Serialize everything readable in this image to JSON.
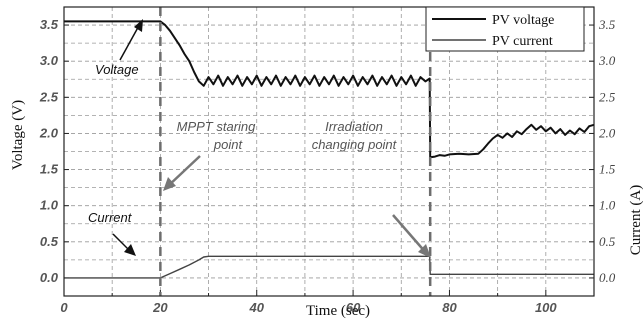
{
  "chart_data": {
    "type": "line",
    "xlabel": "Time (sec)",
    "ylabel_left": "Voltage (V)",
    "ylabel_right": "Current (A)",
    "xlim": [
      0,
      110
    ],
    "ylim": [
      -0.25,
      3.75
    ],
    "x_ticks": [
      "0",
      "20",
      "40",
      "60",
      "80",
      "100"
    ],
    "y_ticks_left": [
      "0.0",
      "0.5",
      "1.0",
      "1.5",
      "2.0",
      "2.5",
      "3.0",
      "3.5"
    ],
    "y_ticks_right": [
      "0.0",
      "0.5",
      "1.0",
      "1.5",
      "2.0",
      "2.5",
      "3.0",
      "3.5"
    ],
    "grid": "dashed",
    "legend_position": "top-right",
    "series": [
      {
        "name": "PV voltage",
        "color": "#111111",
        "x": [
          0,
          20,
          21,
          22,
          23,
          24,
          25,
          26,
          27,
          28,
          29,
          30,
          31,
          32,
          33,
          34,
          35,
          36,
          37,
          38,
          39,
          40,
          41,
          42,
          43,
          44,
          45,
          46,
          47,
          48,
          49,
          50,
          51,
          52,
          53,
          54,
          55,
          56,
          57,
          58,
          59,
          60,
          61,
          62,
          63,
          64,
          65,
          66,
          67,
          68,
          69,
          70,
          71,
          72,
          73,
          74,
          75,
          75.9,
          76,
          77,
          78,
          79,
          80,
          82,
          84,
          86,
          87,
          88,
          89,
          90,
          91,
          92,
          93,
          94,
          95,
          96,
          97,
          98,
          99,
          100,
          101,
          102,
          103,
          104,
          105,
          106,
          107,
          108,
          109,
          110
        ],
        "y": [
          3.55,
          3.55,
          3.5,
          3.42,
          3.32,
          3.22,
          3.1,
          3.0,
          2.85,
          2.72,
          2.66,
          2.78,
          2.68,
          2.8,
          2.66,
          2.78,
          2.68,
          2.8,
          2.66,
          2.78,
          2.68,
          2.8,
          2.66,
          2.78,
          2.68,
          2.8,
          2.66,
          2.78,
          2.68,
          2.8,
          2.66,
          2.78,
          2.68,
          2.8,
          2.66,
          2.78,
          2.68,
          2.8,
          2.66,
          2.78,
          2.68,
          2.8,
          2.66,
          2.78,
          2.68,
          2.8,
          2.66,
          2.78,
          2.68,
          2.8,
          2.66,
          2.78,
          2.68,
          2.8,
          2.66,
          2.78,
          2.72,
          2.76,
          1.67,
          1.68,
          1.7,
          1.69,
          1.71,
          1.72,
          1.71,
          1.72,
          1.78,
          1.86,
          1.93,
          1.98,
          1.94,
          2.0,
          1.95,
          2.03,
          1.99,
          2.06,
          2.12,
          2.05,
          2.1,
          2.03,
          2.08,
          2.0,
          2.06,
          1.98,
          2.04,
          1.99,
          2.07,
          2.02,
          2.1,
          2.12
        ]
      },
      {
        "name": "PV current",
        "color": "#444444",
        "x": [
          0,
          20,
          22,
          24,
          26,
          28,
          29,
          30,
          35,
          40,
          45,
          50,
          55,
          60,
          65,
          70,
          75,
          75.9,
          76,
          80,
          90,
          100,
          110
        ],
        "y": [
          0.0,
          0.0,
          0.06,
          0.12,
          0.18,
          0.25,
          0.29,
          0.3,
          0.3,
          0.3,
          0.3,
          0.3,
          0.3,
          0.3,
          0.3,
          0.3,
          0.3,
          0.3,
          0.05,
          0.05,
          0.05,
          0.05,
          0.05
        ]
      }
    ],
    "markers": [
      {
        "name": "MPPT-start-line",
        "x": 20
      },
      {
        "name": "irradiation-change-line",
        "x": 76
      }
    ],
    "annotations": {
      "voltage": "Voltage",
      "current": "Current",
      "mppt_line1": "MPPT  staring",
      "mppt_line2": "point",
      "irr_line1": "Irradiation",
      "irr_line2": "changing point"
    }
  }
}
